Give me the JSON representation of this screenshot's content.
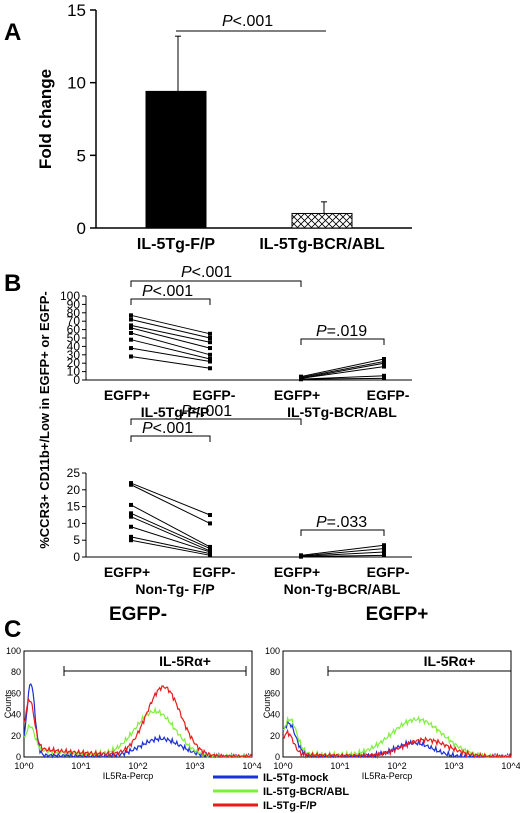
{
  "chart_data": [
    {
      "panel": "A",
      "type": "bar",
      "categories": [
        "IL-5Tg-F/P",
        "IL-5Tg-BCR/ABL"
      ],
      "values": [
        9.4,
        1.0
      ],
      "errors": [
        3.8,
        0.8
      ],
      "ylabel": "Fold change",
      "ylim": [
        0,
        15
      ],
      "yticks": [
        0,
        5,
        10,
        15
      ],
      "significance": {
        "p_prefix": "P",
        "p_value": "<.001"
      },
      "colors": {
        "bar1": "#000000",
        "bar2_pattern": "crosshatch"
      }
    },
    {
      "panel": "B",
      "type": "line",
      "ylabel": "%CCR3+ CD11b+/Low in EGFP+ or EGFP-",
      "subplots": [
        {
          "name": "top",
          "ylim": [
            0,
            100
          ],
          "yticks": [
            0,
            10,
            20,
            30,
            40,
            50,
            60,
            70,
            80,
            90,
            100
          ],
          "x_labels": [
            "EGFP+",
            "EGFP-",
            "EGFP+",
            "EGFP-"
          ],
          "group_labels": [
            "IL-5Tg-F/P",
            "IL-5Tg-BCR/ABL"
          ],
          "pairs_group1": [
            [
              77,
              55
            ],
            [
              72,
              50
            ],
            [
              65,
              45
            ],
            [
              62,
              38
            ],
            [
              56,
              30
            ],
            [
              48,
              25
            ],
            [
              38,
              22
            ],
            [
              28,
              14
            ]
          ],
          "pairs_group2": [
            [
              4,
              25
            ],
            [
              3,
              22
            ],
            [
              2,
              20
            ],
            [
              2,
              16
            ],
            [
              1,
              5
            ],
            [
              1,
              2
            ]
          ],
          "p_values": {
            "within1": "<.001",
            "between": "<.001",
            "within2": "=.019"
          }
        },
        {
          "name": "bottom",
          "ylim": [
            0,
            25
          ],
          "yticks": [
            0,
            5,
            10,
            15,
            20,
            25
          ],
          "x_labels": [
            "EGFP+",
            "EGFP-",
            "EGFP+",
            "EGFP-"
          ],
          "group_labels": [
            "Non-Tg- F/P",
            "Non-Tg-BCR/ABL"
          ],
          "pairs_group1": [
            [
              22,
              12.5
            ],
            [
              21.5,
              10
            ],
            [
              15.5,
              3
            ],
            [
              13,
              2.5
            ],
            [
              12,
              1.8
            ],
            [
              9,
              1.5
            ],
            [
              6,
              1
            ],
            [
              5,
              0.5
            ]
          ],
          "pairs_group2": [
            [
              0.5,
              3.5
            ],
            [
              0.3,
              2.5
            ],
            [
              0.2,
              1.5
            ],
            [
              0.1,
              0.5
            ]
          ],
          "p_values": {
            "within1": "<.001",
            "between": "<.001",
            "within2": "=.033"
          }
        }
      ]
    },
    {
      "panel": "C",
      "type": "line",
      "subplots": [
        {
          "title": "EGFP-",
          "gate_label": "IL-5Rα+"
        },
        {
          "title": "EGFP+",
          "gate_label": "IL-5Rα+"
        }
      ],
      "xlabel": "IL5Ra-Percp",
      "ylabel": "Counts",
      "ylim": [
        0,
        100
      ],
      "yticks": [
        0,
        20,
        40,
        60,
        80,
        100
      ],
      "xticks": [
        "10^0",
        "10^1",
        "10^2",
        "10^3",
        "10^4"
      ],
      "series": [
        {
          "name": "IL-5Tg-mock",
          "color": "#1a2fd6"
        },
        {
          "name": "IL-5Tg-BCR/ABL",
          "color": "#7fef3c"
        },
        {
          "name": "IL-5Tg-F/P",
          "color": "#e81a1a"
        }
      ]
    }
  ],
  "labels": {
    "panel_a": "A",
    "panel_b": "B",
    "panel_c": "C",
    "p_letter": "P",
    "legend_mock": "IL-5Tg-mock",
    "legend_bcr": "IL-5Tg-BCR/ABL",
    "legend_fp": "IL-5Tg-F/P"
  }
}
